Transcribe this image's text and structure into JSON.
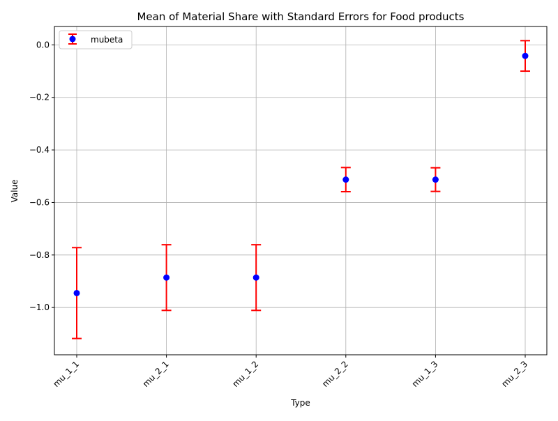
{
  "chart_data": {
    "type": "scatter",
    "title": "Mean of Material Share with Standard Errors for Food products",
    "xlabel": "Type",
    "ylabel": "Value",
    "categories": [
      "mu_1_1",
      "mu_2_1",
      "mu_1_2",
      "mu_2_2",
      "mu_1_3",
      "mu_2_3"
    ],
    "series": [
      {
        "name": "mubeta",
        "values": [
          -0.945,
          -0.886,
          -0.886,
          -0.513,
          -0.513,
          -0.042
        ],
        "errors": [
          0.173,
          0.125,
          0.125,
          0.046,
          0.045,
          0.058
        ]
      }
    ],
    "ylim": [
      -1.18,
      0.07
    ],
    "yticks": [
      0.0,
      -0.2,
      -0.4,
      -0.6,
      -0.8,
      -1.0
    ],
    "ytick_labels": [
      "0.0",
      "−0.2",
      "−0.4",
      "−0.6",
      "−0.8",
      "−1.0"
    ],
    "grid": true,
    "legend_position": "upper-left",
    "colors": {
      "marker": "#0000ff",
      "errorbar": "#ff0000",
      "grid": "#b0b0b0"
    }
  }
}
